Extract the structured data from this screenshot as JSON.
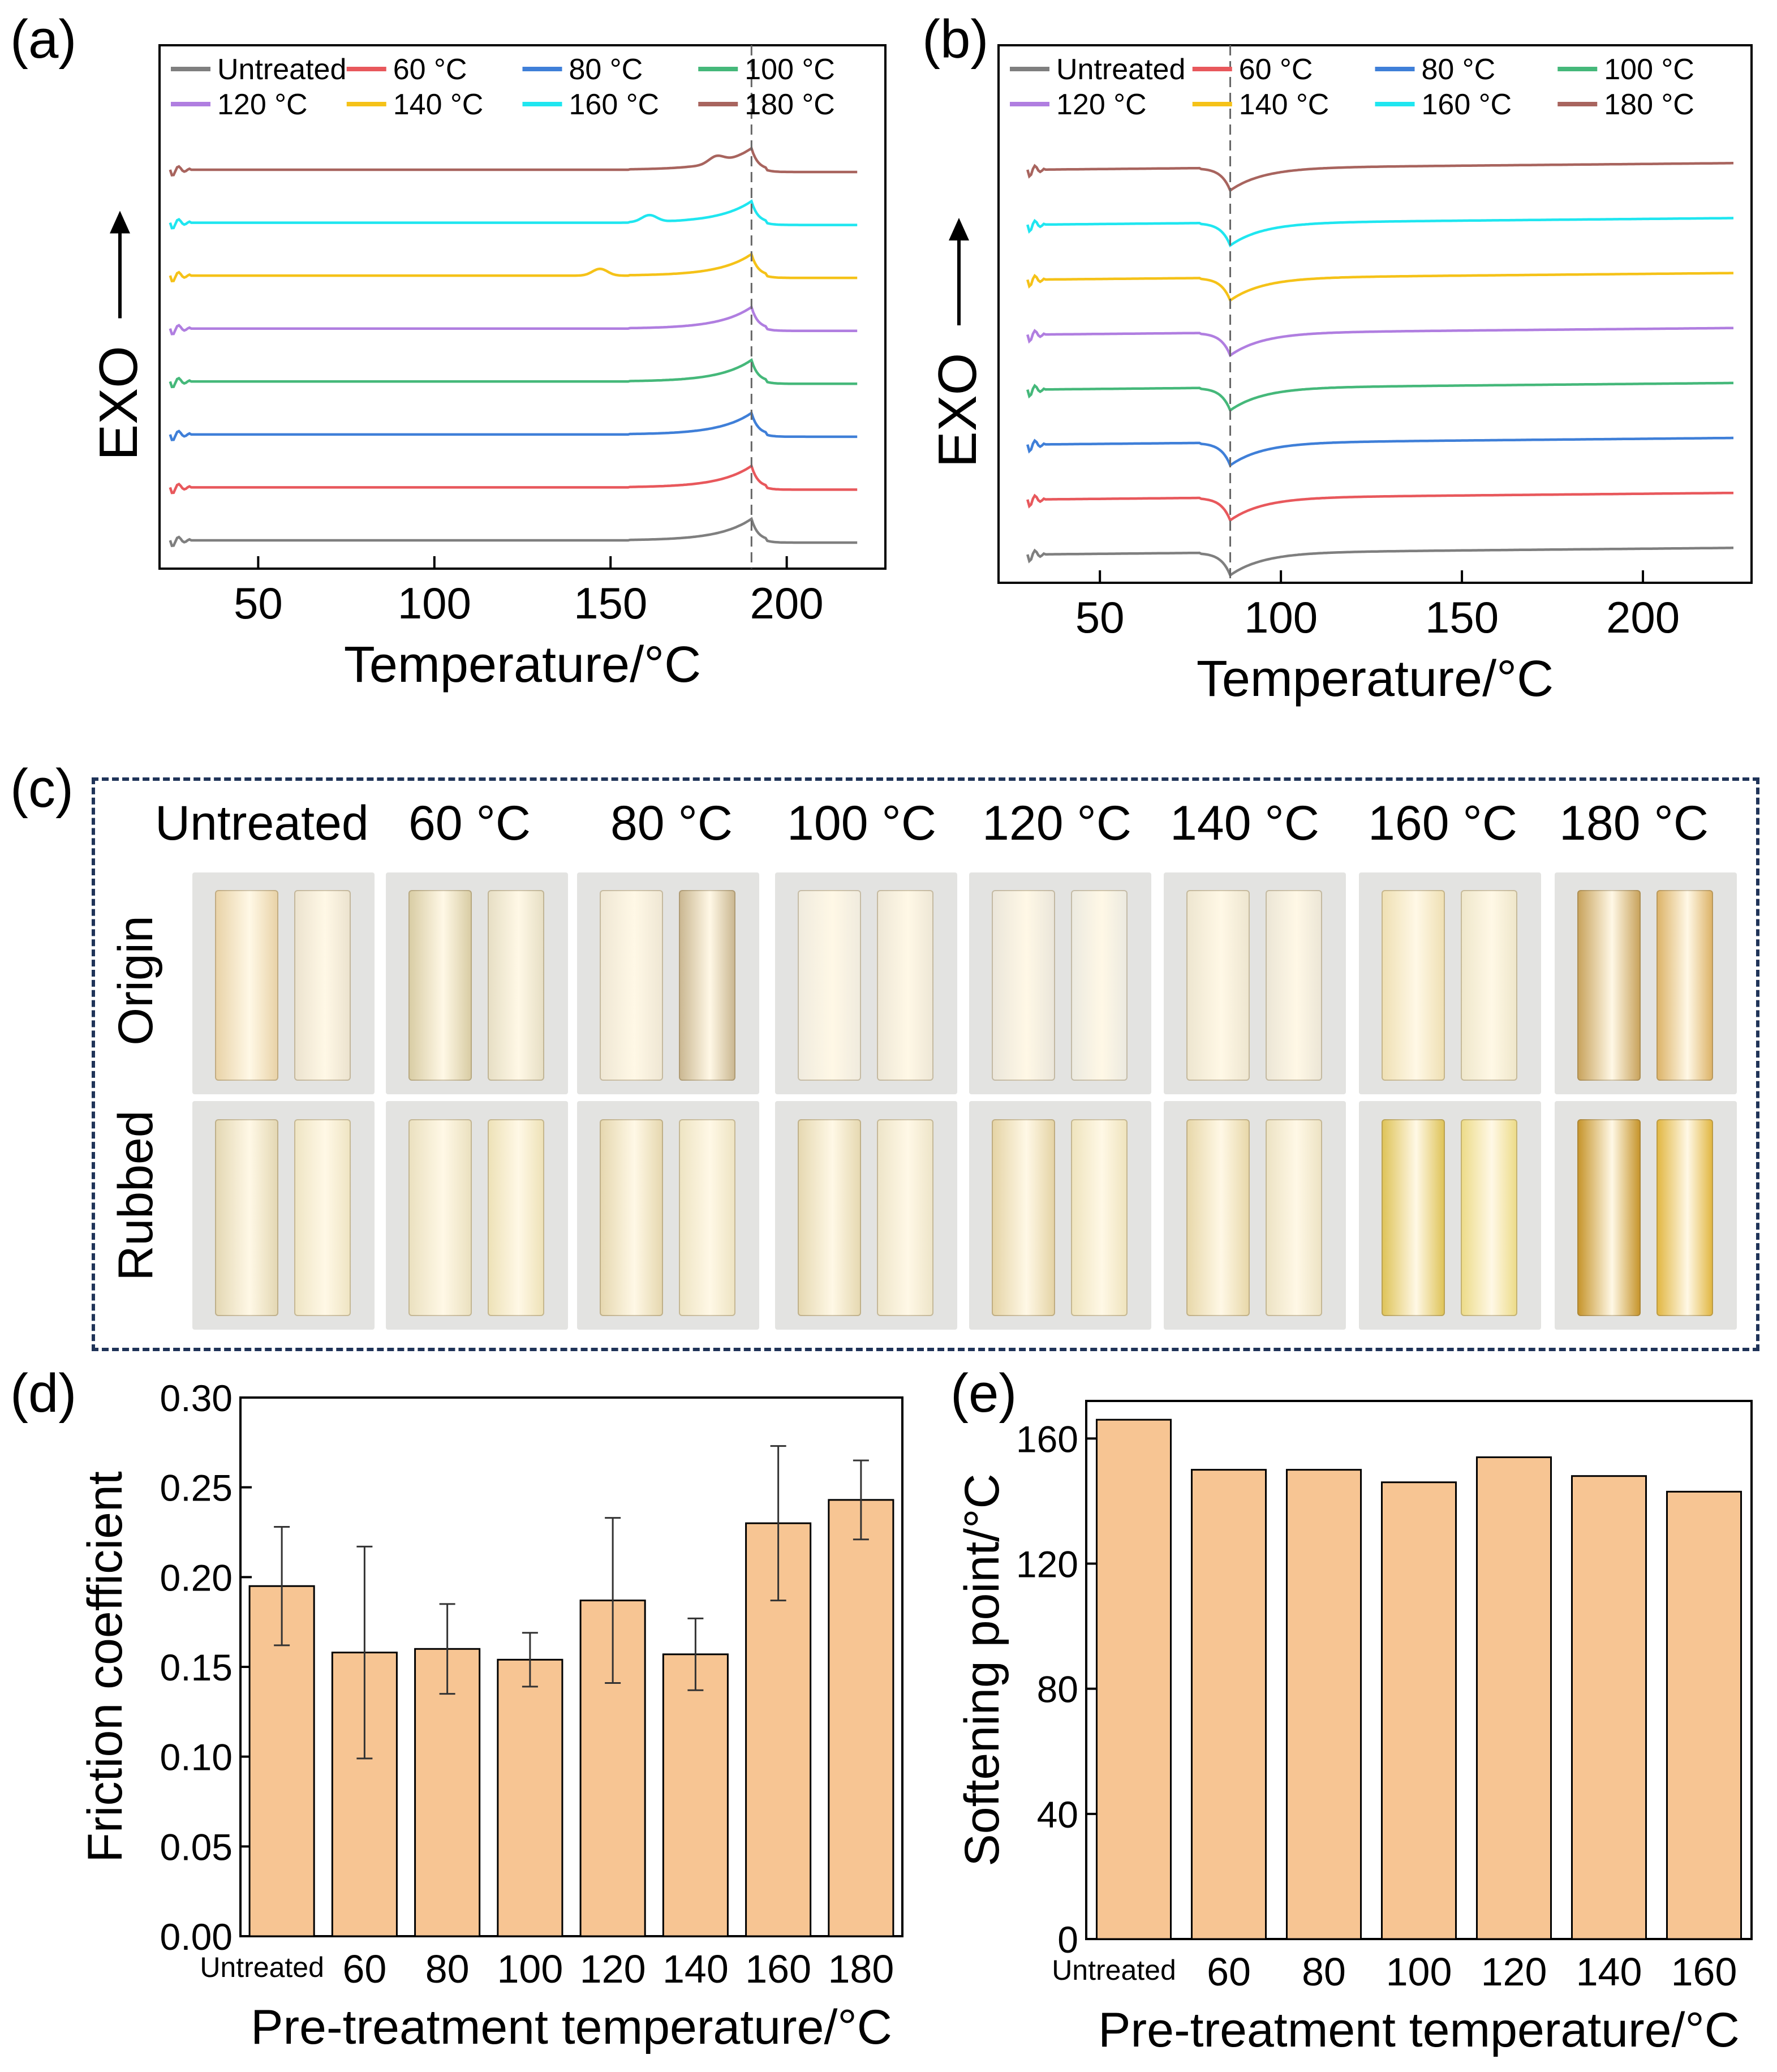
{
  "panels": {
    "a": "(a)",
    "b": "(b)",
    "c": "(c)",
    "d": "(d)",
    "e": "(e)"
  },
  "chart_data": [
    {
      "id": "a",
      "type": "line",
      "title": "",
      "xlabel": "Temperature/°C",
      "ylabel": "EXO",
      "xlim": [
        22,
        228
      ],
      "xticks": [
        50,
        100,
        150,
        200
      ],
      "reference_line_x": 190,
      "legend": [
        "Untreated",
        "60 °C",
        "80 °C",
        "100 °C",
        "120 °C",
        "140 °C",
        "160 °C",
        "180 °C"
      ],
      "legend_placement": "top",
      "series": [
        {
          "name": "Untreated",
          "color": "#7f7f7f",
          "x_range": [
            25,
            220
          ],
          "peak_x": 190,
          "shape": "exo-peak"
        },
        {
          "name": "60 °C",
          "color": "#e8585c",
          "x_range": [
            25,
            220
          ],
          "peak_x": 190,
          "shape": "exo-peak"
        },
        {
          "name": "80 °C",
          "color": "#3f7fd8",
          "x_range": [
            25,
            220
          ],
          "peak_x": 190,
          "shape": "exo-peak"
        },
        {
          "name": "100 °C",
          "color": "#45b87a",
          "x_range": [
            25,
            220
          ],
          "peak_x": 190,
          "shape": "exo-peak"
        },
        {
          "name": "120 °C",
          "color": "#b07ee0",
          "x_range": [
            25,
            220
          ],
          "peak_x": 190,
          "shape": "exo-peak"
        },
        {
          "name": "140 °C",
          "color": "#f5c218",
          "x_range": [
            25,
            220
          ],
          "peak_x": 190,
          "shape": "exo-peak"
        },
        {
          "name": "160 °C",
          "color": "#1fe6f0",
          "x_range": [
            25,
            220
          ],
          "peak_x": 190,
          "shape": "exo-peak"
        },
        {
          "name": "180 °C",
          "color": "#a8645e",
          "x_range": [
            25,
            220
          ],
          "peak_x": 190,
          "shape": "exo-peak"
        }
      ]
    },
    {
      "id": "b",
      "type": "line",
      "title": "",
      "xlabel": "Temperature/°C",
      "ylabel": "EXO",
      "xlim": [
        22,
        230
      ],
      "xticks": [
        50,
        100,
        150,
        200
      ],
      "reference_line_x": 86,
      "legend": [
        "Untreated",
        "60 °C",
        "80 °C",
        "100 °C",
        "120 °C",
        "140 °C",
        "160 °C",
        "180 °C"
      ],
      "legend_placement": "top",
      "series": [
        {
          "name": "Untreated",
          "color": "#7f7f7f",
          "x_range": [
            30,
            225
          ],
          "dip_x": 86,
          "shape": "endo-dip"
        },
        {
          "name": "60 °C",
          "color": "#e8585c",
          "x_range": [
            30,
            225
          ],
          "dip_x": 86,
          "shape": "endo-dip"
        },
        {
          "name": "80 °C",
          "color": "#3f7fd8",
          "x_range": [
            30,
            225
          ],
          "dip_x": 86,
          "shape": "endo-dip"
        },
        {
          "name": "100 °C",
          "color": "#45b87a",
          "x_range": [
            30,
            225
          ],
          "dip_x": 86,
          "shape": "endo-dip"
        },
        {
          "name": "120 °C",
          "color": "#b07ee0",
          "x_range": [
            30,
            225
          ],
          "dip_x": 86,
          "shape": "endo-dip"
        },
        {
          "name": "140 °C",
          "color": "#f5c218",
          "x_range": [
            30,
            225
          ],
          "dip_x": 86,
          "shape": "endo-dip"
        },
        {
          "name": "160 °C",
          "color": "#1fe6f0",
          "x_range": [
            30,
            225
          ],
          "dip_x": 86,
          "shape": "endo-dip"
        },
        {
          "name": "180 °C",
          "color": "#a8645e",
          "x_range": [
            30,
            225
          ],
          "dip_x": 86,
          "shape": "endo-dip"
        }
      ]
    },
    {
      "id": "d",
      "type": "bar",
      "title": "",
      "xlabel": "Pre-treatment temperature/°C",
      "ylabel": "Friction coefficient",
      "ylim": [
        0,
        0.3
      ],
      "yticks": [
        "0.00",
        "0.05",
        "0.10",
        "0.15",
        "0.20",
        "0.25",
        "0.30"
      ],
      "categories": [
        "Untreated",
        "60",
        "80",
        "100",
        "120",
        "140",
        "160",
        "180"
      ],
      "values": [
        0.195,
        0.158,
        0.16,
        0.154,
        0.187,
        0.157,
        0.23,
        0.243
      ],
      "errors": [
        0.033,
        0.059,
        0.025,
        0.015,
        0.046,
        0.02,
        0.043,
        0.022
      ],
      "bar_color": "#f7c593"
    },
    {
      "id": "e",
      "type": "bar",
      "title": "",
      "xlabel": "Pre-treatment temperature/°C",
      "ylabel": "Softening point/°C",
      "ylim": [
        0,
        172
      ],
      "yticks": [
        "0",
        "40",
        "80",
        "120",
        "160"
      ],
      "categories": [
        "Untreated",
        "60",
        "80",
        "100",
        "120",
        "140",
        "160"
      ],
      "values": [
        166,
        150,
        150,
        146,
        154,
        148,
        143
      ],
      "bar_color": "#f7c593"
    }
  ],
  "photos": {
    "columns": [
      "Untreated",
      "60 °C",
      "80 °C",
      "100 °C",
      "120 °C",
      "140 °C",
      "160 °C",
      "180 °C"
    ],
    "rows": [
      "Origin",
      "Rubbed"
    ]
  }
}
